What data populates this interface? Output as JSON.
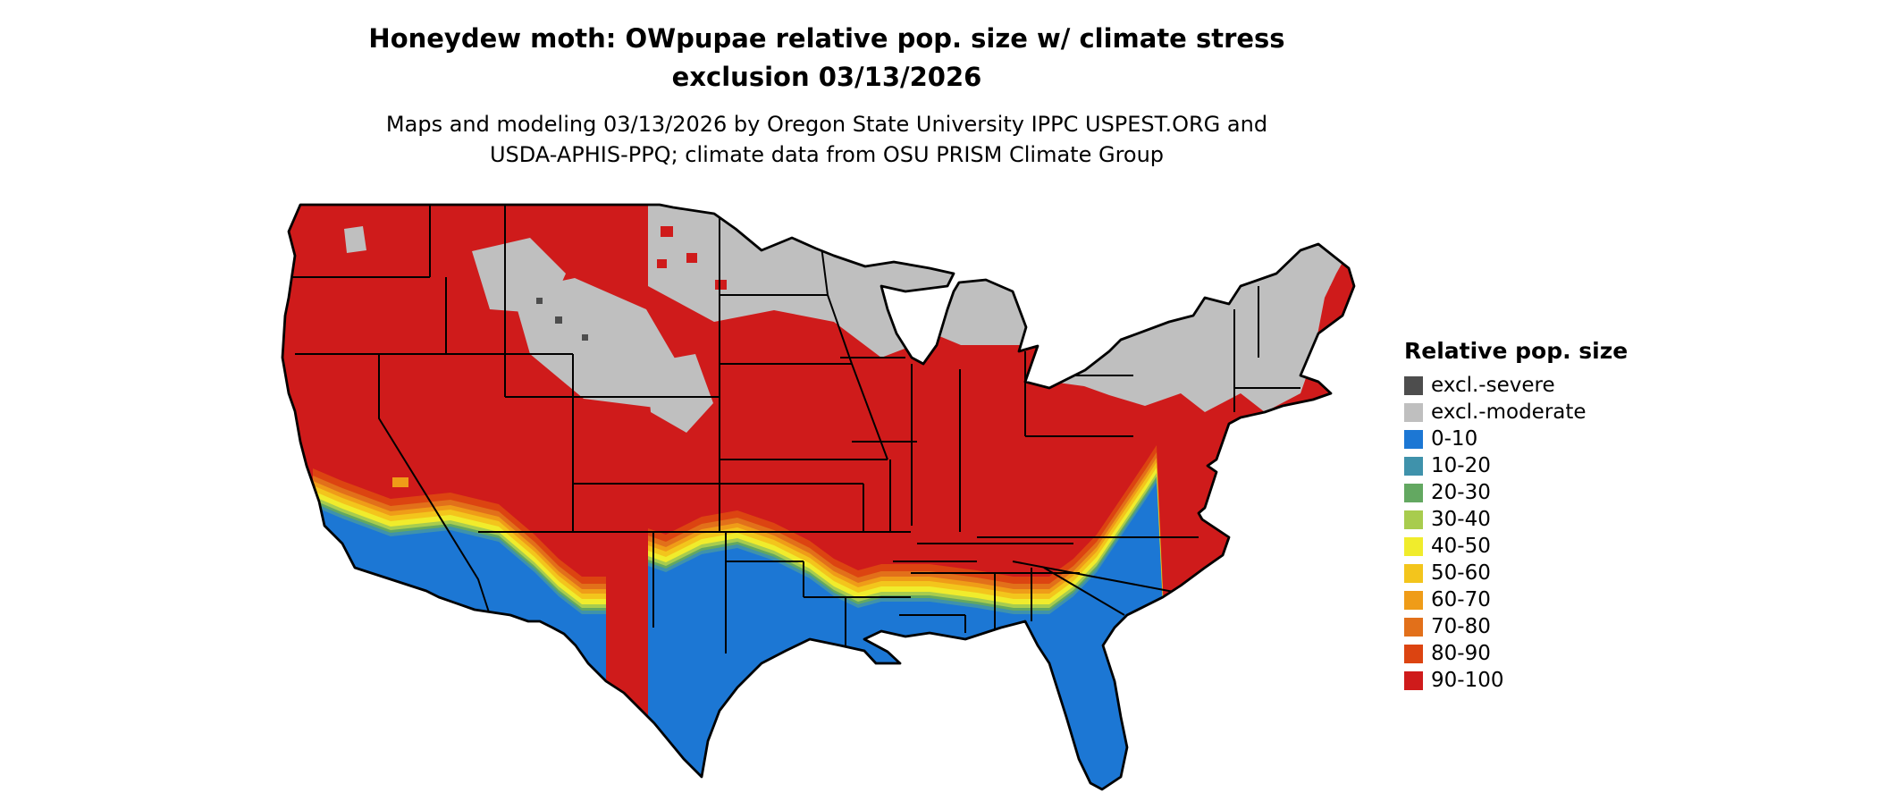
{
  "title": {
    "line1": "Honeydew moth: OWpupae relative pop. size w/ climate stress",
    "line2": "exclusion 03/13/2026"
  },
  "subtitle": {
    "line1": "Maps and modeling 03/13/2026 by Oregon State University IPPC USPEST.ORG and",
    "line2": "USDA-APHIS-PPQ; climate data from OSU PRISM Climate Group"
  },
  "legend": {
    "title": "Relative pop. size",
    "items": [
      {
        "label": "excl.-severe",
        "color": "#4D4D4D"
      },
      {
        "label": "excl.-moderate",
        "color": "#BFBFBF"
      },
      {
        "label": "0-10",
        "color": "#1C77D4"
      },
      {
        "label": "10-20",
        "color": "#3F92AB"
      },
      {
        "label": "20-30",
        "color": "#63A861"
      },
      {
        "label": "30-40",
        "color": "#A8CC4E"
      },
      {
        "label": "40-50",
        "color": "#F0EC2C"
      },
      {
        "label": "50-60",
        "color": "#F3C51C"
      },
      {
        "label": "60-70",
        "color": "#EF9C18"
      },
      {
        "label": "70-80",
        "color": "#E2701A"
      },
      {
        "label": "80-90",
        "color": "#DC4411"
      },
      {
        "label": "90-100",
        "color": "#CF1B1B"
      }
    ]
  },
  "map": {
    "border_color": "#000000",
    "background_color": "#FFFFFF"
  }
}
